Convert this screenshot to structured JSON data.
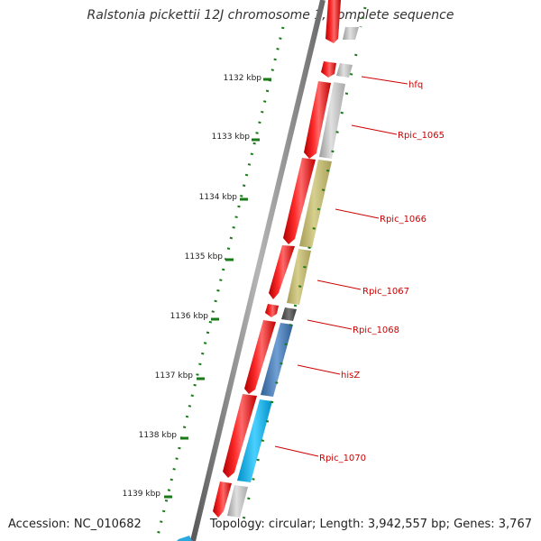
{
  "title": "Ralstonia pickettii 12J chromosome 1, complete sequence",
  "accession": "Accession: NC_010682",
  "summary": "Topology: circular; Length: 3,942,557 bp; Genes: 3,767",
  "ticks": [
    {
      "label": "1132 kbp"
    },
    {
      "label": "1133 kbp"
    },
    {
      "label": "1134 kbp"
    },
    {
      "label": "1135 kbp"
    },
    {
      "label": "1136 kbp"
    },
    {
      "label": "1137 kbp"
    },
    {
      "label": "1138 kbp"
    },
    {
      "label": "1139 kbp"
    }
  ],
  "gene_labels": [
    {
      "name": "hfq"
    },
    {
      "name": "Rpic_1065"
    },
    {
      "name": "Rpic_1066"
    },
    {
      "name": "Rpic_1067"
    },
    {
      "name": "Rpic_1068"
    },
    {
      "name": "hisZ"
    },
    {
      "name": "Rpic_1070"
    }
  ],
  "colors": {
    "cds": "#ff0000",
    "hypothetical": "#bfbfbf",
    "olive": "#c8c077",
    "dark_gray": "#555555",
    "steel_blue": "#4a7db5",
    "cyan": "#00b0ea",
    "label": "#cc0000",
    "ruler": "#1a7a1a"
  }
}
